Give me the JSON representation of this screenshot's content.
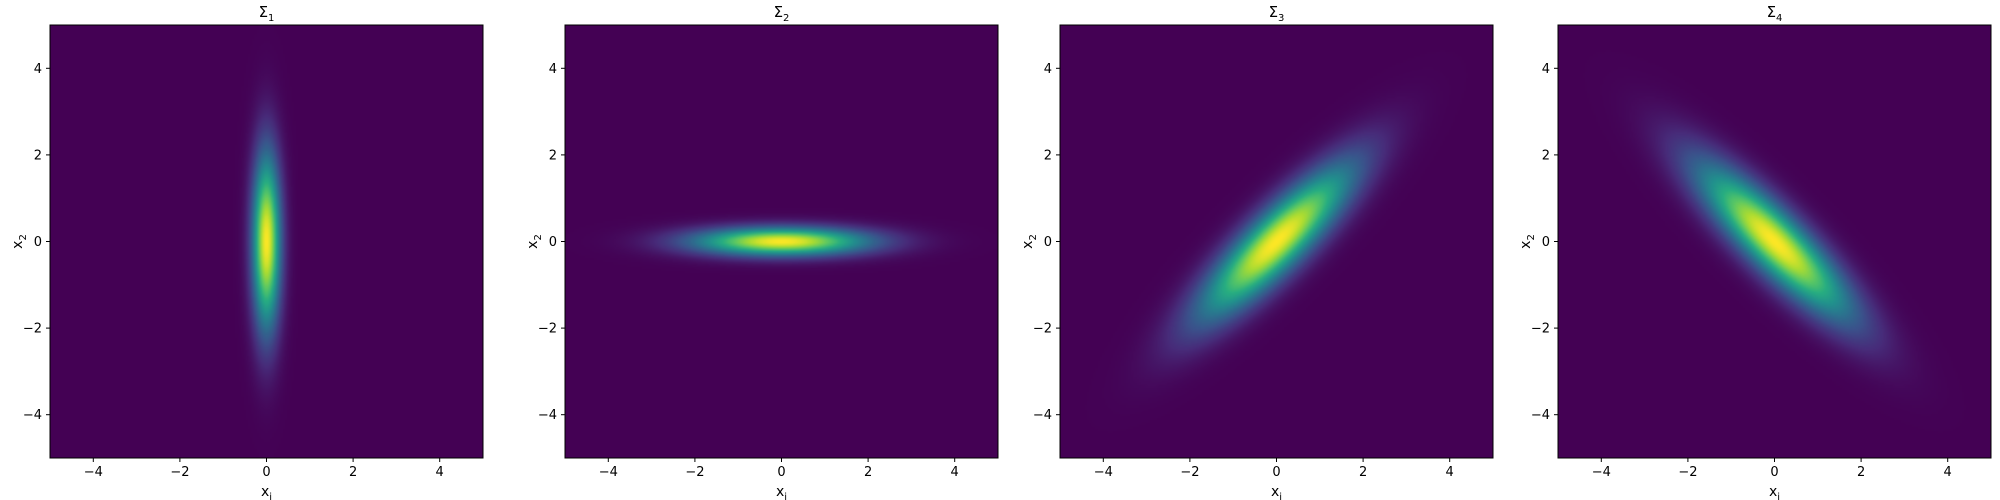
{
  "chart_data": [
    {
      "type": "heatmap",
      "title": "Σ",
      "title_subscript": "1",
      "xlabel": "x",
      "xlabel_subscript": "i",
      "ylabel": "x",
      "ylabel_subscript": "2",
      "xlim": [
        -5,
        5
      ],
      "ylim": [
        -5,
        5
      ],
      "xticks": [
        -4,
        -2,
        0,
        2,
        4
      ],
      "yticks": [
        -4,
        -2,
        0,
        2,
        4
      ],
      "xtick_labels": [
        "−4",
        "−2",
        "0",
        "2",
        "4"
      ],
      "ytick_labels": [
        "−4",
        "−2",
        "0",
        "2",
        "4"
      ],
      "colormap": "viridis",
      "grid": false,
      "mean": [
        0,
        0
      ],
      "covariance": [
        [
          0.05,
          0
        ],
        [
          0,
          2
        ]
      ]
    },
    {
      "type": "heatmap",
      "title": "Σ",
      "title_subscript": "2",
      "xlabel": "x",
      "xlabel_subscript": "i",
      "ylabel": "x",
      "ylabel_subscript": "2",
      "xlim": [
        -5,
        5
      ],
      "ylim": [
        -5,
        5
      ],
      "xticks": [
        -4,
        -2,
        0,
        2,
        4
      ],
      "yticks": [
        -4,
        -2,
        0,
        2,
        4
      ],
      "xtick_labels": [
        "−4",
        "−2",
        "0",
        "2",
        "4"
      ],
      "ytick_labels": [
        "−4",
        "−2",
        "0",
        "2",
        "4"
      ],
      "colormap": "viridis",
      "grid": false,
      "mean": [
        0,
        0
      ],
      "covariance": [
        [
          2,
          0
        ],
        [
          0,
          0.05
        ]
      ]
    },
    {
      "type": "heatmap",
      "title": "Σ",
      "title_subscript": "3",
      "xlabel": "x",
      "xlabel_subscript": "i",
      "ylabel": "x",
      "ylabel_subscript": "2",
      "xlim": [
        -5,
        5
      ],
      "ylim": [
        -5,
        5
      ],
      "xticks": [
        -4,
        -2,
        0,
        2,
        4
      ],
      "yticks": [
        -4,
        -2,
        0,
        2,
        4
      ],
      "xtick_labels": [
        "−4",
        "−2",
        "0",
        "2",
        "4"
      ],
      "ytick_labels": [
        "−4",
        "−2",
        "0",
        "2",
        "4"
      ],
      "colormap": "viridis",
      "grid": false,
      "mean": [
        0,
        0
      ],
      "covariance": [
        [
          1.5,
          1.3
        ],
        [
          1.3,
          1.5
        ]
      ]
    },
    {
      "type": "heatmap",
      "title": "Σ",
      "title_subscript": "4",
      "xlabel": "x",
      "xlabel_subscript": "i",
      "ylabel": "x",
      "ylabel_subscript": "2",
      "xlim": [
        -5,
        5
      ],
      "ylim": [
        -5,
        5
      ],
      "xticks": [
        -4,
        -2,
        0,
        2,
        4
      ],
      "yticks": [
        -4,
        -2,
        0,
        2,
        4
      ],
      "xtick_labels": [
        "−4",
        "−2",
        "0",
        "2",
        "4"
      ],
      "ytick_labels": [
        "−4",
        "−2",
        "0",
        "2",
        "4"
      ],
      "colormap": "viridis",
      "grid": false,
      "mean": [
        0,
        0
      ],
      "covariance": [
        [
          1.5,
          -1.3
        ],
        [
          -1.3,
          1.5
        ]
      ]
    }
  ]
}
